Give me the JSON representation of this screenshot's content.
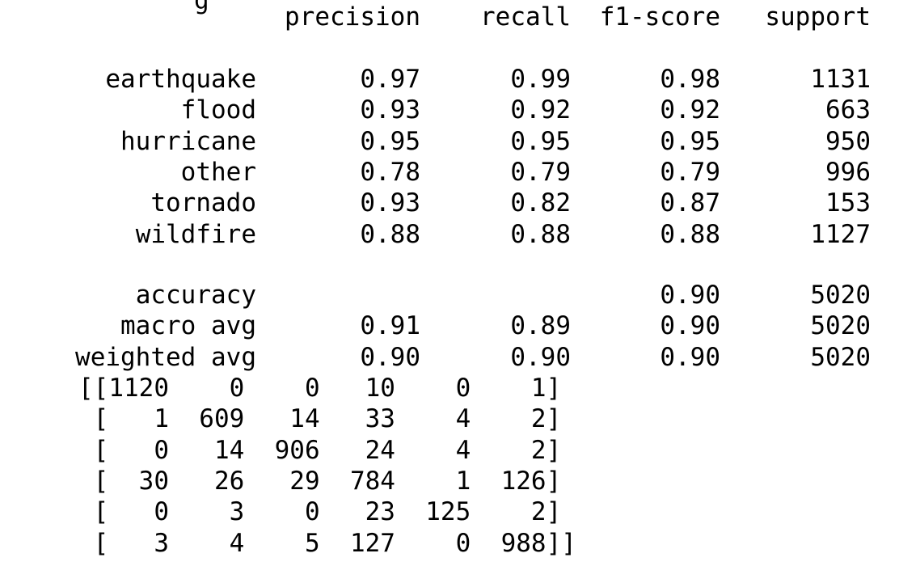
{
  "clipped_fragment": "g",
  "report": {
    "headers": [
      "precision",
      "recall",
      "f1-score",
      "support"
    ],
    "rows": [
      {
        "label": "earthquake",
        "precision": "0.97",
        "recall": "0.99",
        "f1": "0.98",
        "support": "1131"
      },
      {
        "label": "flood",
        "precision": "0.93",
        "recall": "0.92",
        "f1": "0.92",
        "support": "663"
      },
      {
        "label": "hurricane",
        "precision": "0.95",
        "recall": "0.95",
        "f1": "0.95",
        "support": "950"
      },
      {
        "label": "other",
        "precision": "0.78",
        "recall": "0.79",
        "f1": "0.79",
        "support": "996"
      },
      {
        "label": "tornado",
        "precision": "0.93",
        "recall": "0.82",
        "f1": "0.87",
        "support": "153"
      },
      {
        "label": "wildfire",
        "precision": "0.88",
        "recall": "0.88",
        "f1": "0.88",
        "support": "1127"
      }
    ],
    "summary": [
      {
        "label": "accuracy",
        "precision": "",
        "recall": "",
        "f1": "0.90",
        "support": "5020"
      },
      {
        "label": "macro avg",
        "precision": "0.91",
        "recall": "0.89",
        "f1": "0.90",
        "support": "5020"
      },
      {
        "label": "weighted avg",
        "precision": "0.90",
        "recall": "0.90",
        "f1": "0.90",
        "support": "5020"
      }
    ]
  },
  "confusion_matrix": [
    "[[1120    0    0   10    0    1]",
    " [   1  609   14   33    4    2]",
    " [   0   14  906   24    4    2]",
    " [  30   26   29  784    1  126]",
    " [   0    3    0   23  125    2]",
    " [   3    4    5  127    0  988]]"
  ]
}
